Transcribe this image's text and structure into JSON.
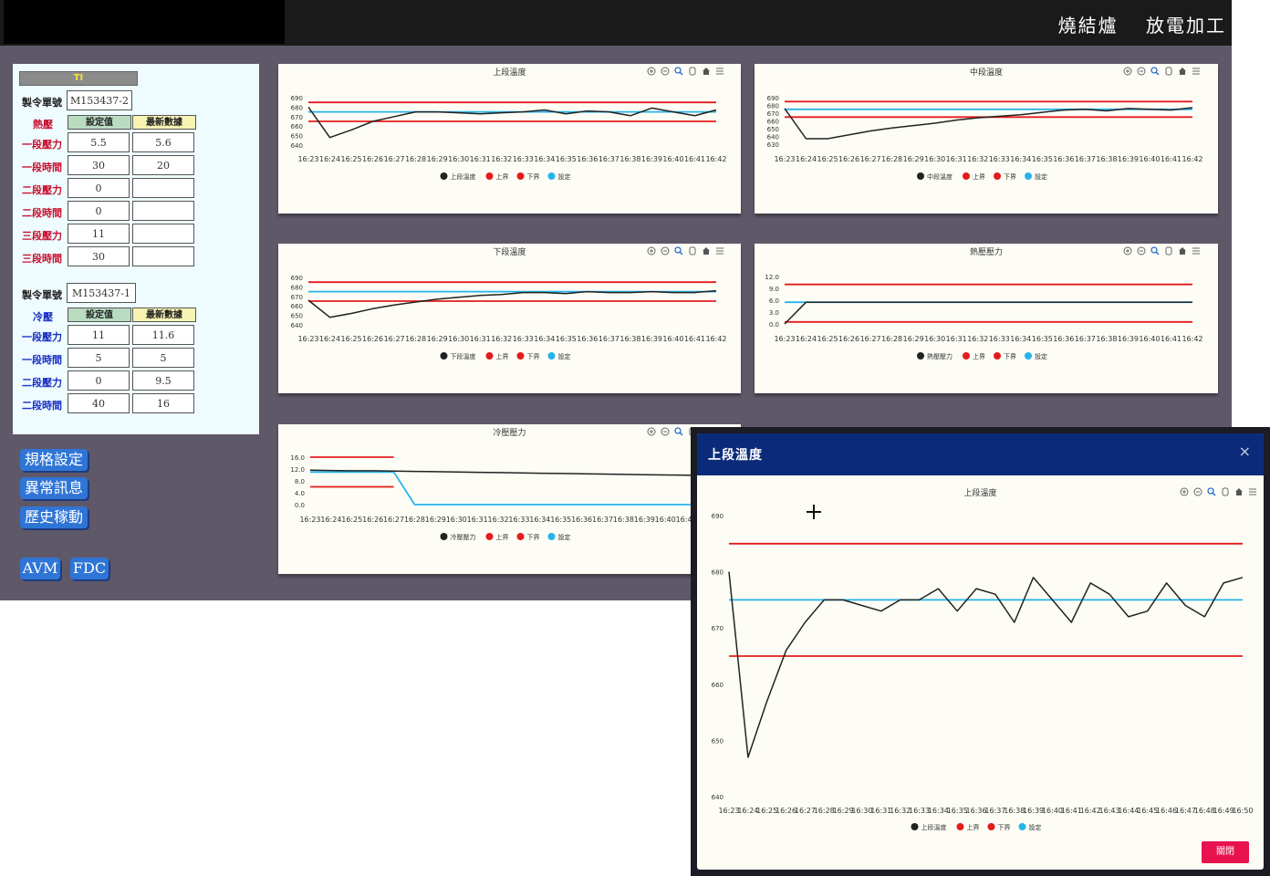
{
  "nav": {
    "items": [
      "燒結爐",
      "放電加工"
    ]
  },
  "left_panel": {
    "title": "TI",
    "hot": {
      "order_label": "製令單號",
      "order_value": "M153437-2",
      "section": "熱壓",
      "col_set": "設定值",
      "col_latest": "最新數據",
      "rows": [
        {
          "label": "一段壓力",
          "set": "5.5",
          "latest": "5.6"
        },
        {
          "label": "一段時間",
          "set": "30",
          "latest": "20"
        },
        {
          "label": "二段壓力",
          "set": "0",
          "latest": ""
        },
        {
          "label": "二段時間",
          "set": "0",
          "latest": ""
        },
        {
          "label": "三段壓力",
          "set": "11",
          "latest": ""
        },
        {
          "label": "三段時間",
          "set": "30",
          "latest": ""
        }
      ]
    },
    "cold": {
      "order_label": "製令單號",
      "order_value": "M153437-1",
      "section": "冷壓",
      "col_set": "設定值",
      "col_latest": "最新數據",
      "rows": [
        {
          "label": "一段壓力",
          "set": "11",
          "latest": "11.6"
        },
        {
          "label": "一段時間",
          "set": "5",
          "latest": "5"
        },
        {
          "label": "二段壓力",
          "set": "0",
          "latest": "9.5"
        },
        {
          "label": "二段時間",
          "set": "40",
          "latest": "16"
        }
      ]
    }
  },
  "buttons": {
    "spec": "規格設定",
    "alarm": "異常訊息",
    "history": "歷史稼動",
    "avm": "AVM",
    "fdc": "FDC"
  },
  "toolbar_icons": [
    "zoom-in-icon",
    "zoom-out-icon",
    "magnify-icon",
    "pan-icon",
    "home-icon",
    "menu-icon"
  ],
  "modal": {
    "title": "上段溫度",
    "close_label": "關閉",
    "x_label": "×"
  },
  "colors": {
    "actual": "#222222",
    "upper": "#e51b1b",
    "lower": "#e51b1b",
    "setpoint": "#27b3ea",
    "header": "#0b2b7a"
  },
  "chart_data": [
    {
      "id": "upper-temp",
      "type": "line",
      "title": "上段溫度",
      "x": [
        "16:23",
        "16:24",
        "16:25",
        "16:26",
        "16:27",
        "16:28",
        "16:29",
        "16:30",
        "16:31",
        "16:32",
        "16:33",
        "16:34",
        "16:35",
        "16:36",
        "16:37",
        "16:38",
        "16:39",
        "16:40",
        "16:41",
        "16:42"
      ],
      "ylim": [
        640,
        690
      ],
      "yticks": [
        640,
        650,
        660,
        670,
        680,
        690
      ],
      "series": [
        {
          "name": "上段溫度",
          "values": [
            680,
            648,
            656,
            665,
            670,
            675,
            675,
            674,
            673,
            674,
            675,
            677,
            673,
            676,
            675,
            671,
            679,
            675,
            671,
            677
          ]
        },
        {
          "name": "上界",
          "values": [
            685,
            685,
            685,
            685,
            685,
            685,
            685,
            685,
            685,
            685,
            685,
            685,
            685,
            685,
            685,
            685,
            685,
            685,
            685,
            685
          ]
        },
        {
          "name": "下界",
          "values": [
            665,
            665,
            665,
            665,
            665,
            665,
            665,
            665,
            665,
            665,
            665,
            665,
            665,
            665,
            665,
            665,
            665,
            665,
            665,
            665
          ]
        },
        {
          "name": "設定",
          "values": [
            675,
            675,
            675,
            675,
            675,
            675,
            675,
            675,
            675,
            675,
            675,
            675,
            675,
            675,
            675,
            675,
            675,
            675,
            675,
            675
          ]
        }
      ]
    },
    {
      "id": "middle-temp",
      "type": "line",
      "title": "中段溫度",
      "x": [
        "16:23",
        "16:24",
        "16:25",
        "16:26",
        "16:27",
        "16:28",
        "16:29",
        "16:30",
        "16:31",
        "16:32",
        "16:33",
        "16:34",
        "16:35",
        "16:36",
        "16:37",
        "16:38",
        "16:39",
        "16:40",
        "16:41",
        "16:42"
      ],
      "ylim": [
        630,
        690
      ],
      "yticks": [
        630,
        640,
        650,
        660,
        670,
        680,
        690
      ],
      "series": [
        {
          "name": "中段溫度",
          "values": [
            676,
            637,
            637,
            642,
            647,
            651,
            654,
            657,
            661,
            664,
            666,
            668,
            671,
            674,
            675,
            673,
            676,
            675,
            674,
            677
          ]
        },
        {
          "name": "上界",
          "values": [
            685,
            685,
            685,
            685,
            685,
            685,
            685,
            685,
            685,
            685,
            685,
            685,
            685,
            685,
            685,
            685,
            685,
            685,
            685,
            685
          ]
        },
        {
          "name": "下界",
          "values": [
            665,
            665,
            665,
            665,
            665,
            665,
            665,
            665,
            665,
            665,
            665,
            665,
            665,
            665,
            665,
            665,
            665,
            665,
            665,
            665
          ]
        },
        {
          "name": "設定",
          "values": [
            675,
            675,
            675,
            675,
            675,
            675,
            675,
            675,
            675,
            675,
            675,
            675,
            675,
            675,
            675,
            675,
            675,
            675,
            675,
            675
          ]
        }
      ]
    },
    {
      "id": "lower-temp",
      "type": "line",
      "title": "下段溫度",
      "x": [
        "16:23",
        "16:24",
        "16:25",
        "16:26",
        "16:27",
        "16:28",
        "16:29",
        "16:30",
        "16:31",
        "16:32",
        "16:33",
        "16:34",
        "16:35",
        "16:36",
        "16:37",
        "16:38",
        "16:39",
        "16:40",
        "16:41",
        "16:42"
      ],
      "ylim": [
        640,
        690
      ],
      "yticks": [
        640,
        650,
        660,
        670,
        680,
        690
      ],
      "series": [
        {
          "name": "下段溫度",
          "values": [
            666,
            648,
            652,
            657,
            661,
            664,
            667,
            669,
            671,
            672,
            674,
            674,
            673,
            675,
            674,
            674,
            675,
            674,
            674,
            676
          ]
        },
        {
          "name": "上界",
          "values": [
            685,
            685,
            685,
            685,
            685,
            685,
            685,
            685,
            685,
            685,
            685,
            685,
            685,
            685,
            685,
            685,
            685,
            685,
            685,
            685
          ]
        },
        {
          "name": "下界",
          "values": [
            665,
            665,
            665,
            665,
            665,
            665,
            665,
            665,
            665,
            665,
            665,
            665,
            665,
            665,
            665,
            665,
            665,
            665,
            665,
            665
          ]
        },
        {
          "name": "設定",
          "values": [
            675,
            675,
            675,
            675,
            675,
            675,
            675,
            675,
            675,
            675,
            675,
            675,
            675,
            675,
            675,
            675,
            675,
            675,
            675,
            675
          ]
        }
      ]
    },
    {
      "id": "hot-pressure",
      "type": "line",
      "title": "熱壓壓力",
      "x": [
        "16:23",
        "16:24",
        "16:25",
        "16:26",
        "16:27",
        "16:28",
        "16:29",
        "16:30",
        "16:31",
        "16:32",
        "16:33",
        "16:34",
        "16:35",
        "16:36",
        "16:37",
        "16:38",
        "16:39",
        "16:40",
        "16:41",
        "16:42"
      ],
      "ylim": [
        0,
        12
      ],
      "yticks": [
        0.0,
        3.0,
        6.0,
        9.0,
        12.0
      ],
      "series": [
        {
          "name": "熱壓壓力",
          "values": [
            0,
            5.5,
            5.5,
            5.5,
            5.5,
            5.5,
            5.5,
            5.5,
            5.5,
            5.5,
            5.5,
            5.5,
            5.5,
            5.5,
            5.5,
            5.5,
            5.5,
            5.5,
            5.5,
            5.5
          ]
        },
        {
          "name": "上界",
          "values": [
            10,
            10,
            10,
            10,
            10,
            10,
            10,
            10,
            10,
            10,
            10,
            10,
            10,
            10,
            10,
            10,
            10,
            10,
            10,
            10
          ]
        },
        {
          "name": "下界",
          "values": [
            0.5,
            0.5,
            0.5,
            0.5,
            0.5,
            0.5,
            0.5,
            0.5,
            0.5,
            0.5,
            0.5,
            0.5,
            0.5,
            0.5,
            0.5,
            0.5,
            0.5,
            0.5,
            0.5,
            0.5
          ]
        },
        {
          "name": "設定",
          "values": [
            5.5,
            5.5,
            5.5,
            5.5,
            5.5,
            5.5,
            5.5,
            5.5,
            5.5,
            5.5,
            5.5,
            5.5,
            5.5,
            5.5,
            5.5,
            5.5,
            5.5,
            5.5,
            5.5,
            5.5
          ]
        }
      ]
    },
    {
      "id": "cold-pressure",
      "type": "line",
      "title": "冷壓壓力",
      "x": [
        "16:23",
        "16:24",
        "16:25",
        "16:26",
        "16:27",
        "16:28",
        "16:29",
        "16:30",
        "16:31",
        "16:32",
        "16:33",
        "16:34",
        "16:35",
        "16:36",
        "16:37",
        "16:38",
        "16:39",
        "16:40",
        "16:41",
        "16:42"
      ],
      "ylim": [
        0,
        16
      ],
      "yticks": [
        0.0,
        4.0,
        8.0,
        12.0,
        16.0
      ],
      "series": [
        {
          "name": "冷壓壓力",
          "values": [
            11.6,
            11.5,
            11.4,
            11.4,
            11.3,
            11.2,
            11.1,
            11.0,
            10.9,
            10.8,
            10.7,
            10.6,
            10.5,
            10.4,
            10.3,
            10.2,
            10.1,
            10.0,
            9.9,
            9.8
          ]
        },
        {
          "name": "上界",
          "values": [
            16,
            16,
            16,
            16,
            16,
            null,
            null,
            null,
            null,
            null,
            null,
            null,
            null,
            null,
            null,
            null,
            null,
            null,
            null,
            null
          ]
        },
        {
          "name": "下界",
          "values": [
            6,
            6,
            6,
            6,
            6,
            null,
            null,
            null,
            null,
            null,
            null,
            null,
            null,
            null,
            null,
            null,
            null,
            null,
            null,
            null
          ]
        },
        {
          "name": "設定",
          "values": [
            11,
            11,
            11,
            11,
            11,
            0,
            0,
            0,
            0,
            0,
            0,
            0,
            0,
            0,
            0,
            0,
            0,
            0,
            0,
            0
          ]
        }
      ]
    },
    {
      "id": "modal-upper-temp",
      "type": "line",
      "title": "上段溫度",
      "x": [
        "16:23",
        "16:24",
        "16:25",
        "16:26",
        "16:27",
        "16:28",
        "16:29",
        "16:30",
        "16:31",
        "16:32",
        "16:33",
        "16:34",
        "16:35",
        "16:36",
        "16:37",
        "16:38",
        "16:39",
        "16:40",
        "16:41",
        "16:42",
        "16:43",
        "16:44",
        "16:45",
        "16:46",
        "16:47",
        "16:48",
        "16:49",
        "16:50"
      ],
      "ylim": [
        640,
        690
      ],
      "yticks": [
        640,
        650,
        660,
        670,
        680,
        690
      ],
      "series": [
        {
          "name": "上段溫度",
          "values": [
            680,
            647,
            657,
            666,
            671,
            675,
            675,
            674,
            673,
            675,
            675,
            677,
            673,
            677,
            676,
            671,
            679,
            675,
            671,
            678,
            676,
            672,
            673,
            678,
            674,
            672,
            678,
            679
          ]
        },
        {
          "name": "上界",
          "values": [
            685,
            685,
            685,
            685,
            685,
            685,
            685,
            685,
            685,
            685,
            685,
            685,
            685,
            685,
            685,
            685,
            685,
            685,
            685,
            685,
            685,
            685,
            685,
            685,
            685,
            685,
            685,
            685
          ]
        },
        {
          "name": "下界",
          "values": [
            665,
            665,
            665,
            665,
            665,
            665,
            665,
            665,
            665,
            665,
            665,
            665,
            665,
            665,
            665,
            665,
            665,
            665,
            665,
            665,
            665,
            665,
            665,
            665,
            665,
            665,
            665,
            665
          ]
        },
        {
          "name": "設定",
          "values": [
            675,
            675,
            675,
            675,
            675,
            675,
            675,
            675,
            675,
            675,
            675,
            675,
            675,
            675,
            675,
            675,
            675,
            675,
            675,
            675,
            675,
            675,
            675,
            675,
            675,
            675,
            675,
            675
          ]
        }
      ]
    }
  ]
}
